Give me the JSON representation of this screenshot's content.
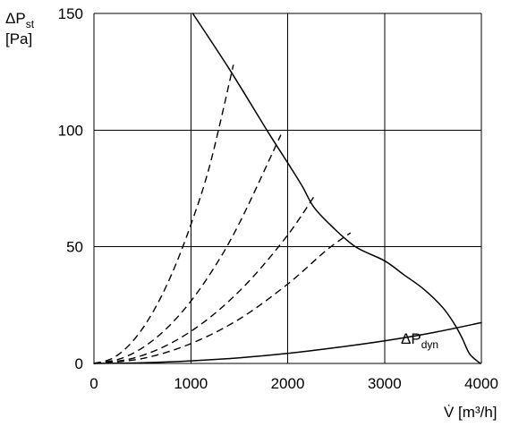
{
  "chart_data": {
    "type": "line",
    "title": "",
    "ylabel": {
      "lines": [
        {
          "main": "ΔP",
          "sub": "st"
        },
        {
          "text": "[Pa]"
        }
      ]
    },
    "xlabel": "V̇ [m³/h]",
    "xlim": [
      0,
      4000
    ],
    "ylim": [
      0,
      150
    ],
    "xticks": [
      0,
      1000,
      2000,
      3000,
      4000
    ],
    "yticks": [
      0,
      50,
      100,
      150
    ],
    "grid": true,
    "series": [
      {
        "role": "fan-curve",
        "style": "solid",
        "points": [
          [
            1020,
            150
          ],
          [
            1400,
            126
          ],
          [
            1800,
            99
          ],
          [
            2000,
            86
          ],
          [
            2150,
            76
          ],
          [
            2270,
            67
          ],
          [
            2450,
            59
          ],
          [
            2700,
            50
          ],
          [
            3000,
            44
          ],
          [
            3200,
            38
          ],
          [
            3400,
            32
          ],
          [
            3600,
            24
          ],
          [
            3720,
            17
          ],
          [
            3800,
            11
          ],
          [
            3880,
            4
          ],
          [
            3990,
            0
          ]
        ]
      },
      {
        "role": "system-curve",
        "style": "dashed",
        "points": [
          [
            0,
            0
          ],
          [
            200,
            2.4
          ],
          [
            400,
            9.5
          ],
          [
            600,
            21.4
          ],
          [
            800,
            38
          ],
          [
            1000,
            59.4
          ],
          [
            1200,
            85.5
          ],
          [
            1440,
            128
          ]
        ]
      },
      {
        "role": "system-curve",
        "style": "dashed",
        "points": [
          [
            0,
            0
          ],
          [
            300,
            2.4
          ],
          [
            600,
            9.6
          ],
          [
            900,
            21.6
          ],
          [
            1200,
            38.4
          ],
          [
            1500,
            60
          ],
          [
            1930,
            98
          ]
        ]
      },
      {
        "role": "system-curve",
        "style": "dashed",
        "points": [
          [
            0,
            0
          ],
          [
            400,
            2.2
          ],
          [
            800,
            8.8
          ],
          [
            1200,
            19.8
          ],
          [
            1600,
            35.2
          ],
          [
            2000,
            55
          ],
          [
            2280,
            72
          ]
        ]
      },
      {
        "role": "system-curve",
        "style": "dashed",
        "points": [
          [
            0,
            0
          ],
          [
            500,
            2.1
          ],
          [
            1000,
            8.5
          ],
          [
            1500,
            19
          ],
          [
            2000,
            34
          ],
          [
            2400,
            48.5
          ],
          [
            2650,
            56
          ]
        ]
      },
      {
        "role": "dynamic-pressure",
        "style": "solid",
        "label": {
          "main": "ΔP",
          "sub": "dyn"
        },
        "points": [
          [
            0,
            0
          ],
          [
            500,
            0.27
          ],
          [
            1000,
            1.1
          ],
          [
            1500,
            2.4
          ],
          [
            2000,
            4.3
          ],
          [
            2500,
            6.8
          ],
          [
            3000,
            9.7
          ],
          [
            3500,
            13.2
          ],
          [
            4000,
            17.5
          ]
        ]
      }
    ]
  }
}
